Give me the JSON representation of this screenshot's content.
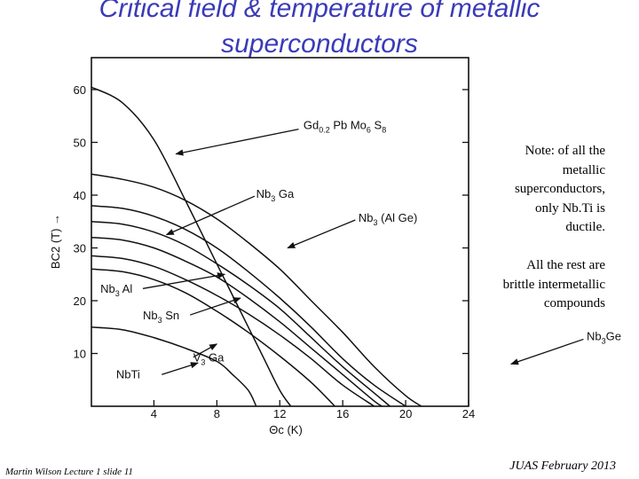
{
  "slide": {
    "title_line1": "Critical field & temperature of metallic",
    "title_line2": "superconductors",
    "note_lines": [
      "Note: of all the",
      "metallic",
      "superconductors,",
      "only Nb.Ti is",
      "ductile."
    ],
    "note2_lines": [
      "All the rest are",
      "brittle intermetallic",
      "compounds"
    ],
    "footer_left": "Martin Wilson Lecture 1 slide 11",
    "footer_right": "JUAS February 2013"
  },
  "chart_data": {
    "type": "line",
    "title": "",
    "xlabel": "Θc (K)",
    "ylabel": "BC2 (T) →",
    "xlim": [
      0,
      24
    ],
    "ylim": [
      0,
      62
    ],
    "x_ticks": [
      4,
      8,
      12,
      16,
      20,
      24
    ],
    "y_ticks": [
      10,
      20,
      30,
      40,
      50,
      60
    ],
    "grid": false,
    "colors": {
      "lines": "#111111",
      "title": "#3a3ab8"
    },
    "series": [
      {
        "name": "Gd0.2 Pb Mo6 S8",
        "label_main": "Gd",
        "label_sub": "0.2",
        "label_mid": " Pb Mo",
        "label_sub2": "6",
        "label_end": " S",
        "label_sub3": "8",
        "points": [
          [
            0,
            60.5
          ],
          [
            2,
            57.5
          ],
          [
            4,
            50.5
          ],
          [
            6,
            39
          ],
          [
            8,
            27
          ],
          [
            10,
            15
          ],
          [
            11,
            9
          ],
          [
            12,
            3
          ],
          [
            12.7,
            0
          ]
        ]
      },
      {
        "name": "Nb3Ge",
        "points": [
          [
            0,
            44
          ],
          [
            2,
            43
          ],
          [
            4,
            41.5
          ],
          [
            6,
            39
          ],
          [
            8,
            35.5
          ],
          [
            10,
            31
          ],
          [
            12,
            26
          ],
          [
            14,
            20
          ],
          [
            16,
            14
          ],
          [
            18,
            7.5
          ],
          [
            20,
            2
          ],
          [
            21,
            0
          ]
        ]
      },
      {
        "name": "Nb3 (Al Ge)",
        "points": [
          [
            0,
            38
          ],
          [
            2,
            37.5
          ],
          [
            4,
            36
          ],
          [
            6,
            33.5
          ],
          [
            8,
            30
          ],
          [
            10,
            25.5
          ],
          [
            12,
            20.5
          ],
          [
            14,
            15
          ],
          [
            16,
            9
          ],
          [
            18,
            4
          ],
          [
            20,
            0
          ]
        ]
      },
      {
        "name": "Nb3 Ga",
        "points": [
          [
            0,
            35
          ],
          [
            2,
            34.5
          ],
          [
            4,
            33
          ],
          [
            6,
            30.5
          ],
          [
            8,
            27
          ],
          [
            10,
            23
          ],
          [
            12,
            18.5
          ],
          [
            14,
            13
          ],
          [
            16,
            7.5
          ],
          [
            18,
            2.5
          ],
          [
            19,
            0
          ]
        ]
      },
      {
        "name": "Nb3 Al",
        "points": [
          [
            0,
            32
          ],
          [
            2,
            31.5
          ],
          [
            4,
            30
          ],
          [
            6,
            27.5
          ],
          [
            8,
            24.5
          ],
          [
            10,
            20.5
          ],
          [
            12,
            16
          ],
          [
            14,
            11
          ],
          [
            16,
            6
          ],
          [
            18,
            1
          ],
          [
            18.5,
            0
          ]
        ]
      },
      {
        "name": "Nb3 Sn",
        "points": [
          [
            0,
            28.5
          ],
          [
            2,
            28
          ],
          [
            4,
            26.5
          ],
          [
            6,
            24
          ],
          [
            8,
            21
          ],
          [
            10,
            17.5
          ],
          [
            12,
            13.5
          ],
          [
            14,
            9
          ],
          [
            16,
            4
          ],
          [
            18,
            0
          ]
        ]
      },
      {
        "name": "V3 Ga",
        "points": [
          [
            0,
            26
          ],
          [
            2,
            25.5
          ],
          [
            4,
            24
          ],
          [
            6,
            21.5
          ],
          [
            8,
            18
          ],
          [
            10,
            14
          ],
          [
            12,
            9.5
          ],
          [
            14,
            4.5
          ],
          [
            15.5,
            0
          ]
        ]
      },
      {
        "name": "NbTi",
        "points": [
          [
            0,
            15
          ],
          [
            2,
            14.5
          ],
          [
            4,
            13
          ],
          [
            6,
            11
          ],
          [
            8,
            8.5
          ],
          [
            9,
            6
          ],
          [
            10,
            3
          ],
          [
            10.5,
            0
          ]
        ]
      }
    ],
    "annotations": [
      {
        "series": "Gd0.2 Pb Mo6 S8",
        "parts": [
          "Gd",
          "0.2",
          " Pb Mo",
          "6",
          " S",
          "8"
        ],
        "label_at": [
          13.5,
          52.5
        ],
        "arrow_from": [
          13.2,
          52.5
        ],
        "arrow_to": [
          5.4,
          47.8
        ]
      },
      {
        "series": "Nb3 Ga",
        "parts": [
          "Nb",
          "3",
          " Ga",
          "",
          "",
          ""
        ],
        "label_at": [
          10.5,
          39.5
        ],
        "arrow_from": [
          10.4,
          39.8
        ],
        "arrow_to": [
          4.8,
          32.5
        ]
      },
      {
        "series": "Nb3 (Al Ge)",
        "parts": [
          "Nb",
          "3",
          "  (Al Ge)",
          "",
          "",
          ""
        ],
        "label_at": [
          17,
          35
        ],
        "arrow_from": [
          16.8,
          35.3
        ],
        "arrow_to": [
          12.5,
          30
        ]
      },
      {
        "series": "Nb3Ge",
        "parts": [
          "Nb",
          "3",
          "Ge",
          "",
          "",
          ""
        ],
        "label_at": [
          31.5,
          12.5
        ],
        "arrow_from": [
          31.3,
          12.7
        ],
        "arrow_to": [
          26.7,
          8
        ]
      },
      {
        "series": "Nb3 Al",
        "parts": [
          "Nb",
          "3",
          " Al",
          "",
          "",
          ""
        ],
        "label_at": [
          0.6,
          21.5
        ],
        "arrow_from": [
          3.3,
          22.3
        ],
        "arrow_to": [
          8.5,
          25
        ]
      },
      {
        "series": "Nb3 Sn",
        "parts": [
          "Nb",
          "3",
          " Sn",
          "",
          "",
          ""
        ],
        "label_at": [
          3.3,
          16.5
        ],
        "arrow_from": [
          6.3,
          17.3
        ],
        "arrow_to": [
          9.5,
          20.5
        ]
      },
      {
        "series": "V3 Ga",
        "parts": [
          "V",
          "3",
          " Ga",
          "",
          "",
          ""
        ],
        "label_at": [
          6.5,
          8.5
        ],
        "arrow_from": [
          6.5,
          9.3
        ],
        "arrow_to": [
          8,
          11.8
        ]
      },
      {
        "series": "NbTi",
        "parts": [
          "NbTi",
          "",
          "",
          "",
          "",
          ""
        ],
        "label_at": [
          1.6,
          5.3
        ],
        "arrow_from": [
          4.5,
          6
        ],
        "arrow_to": [
          6.8,
          8.2
        ]
      }
    ]
  }
}
